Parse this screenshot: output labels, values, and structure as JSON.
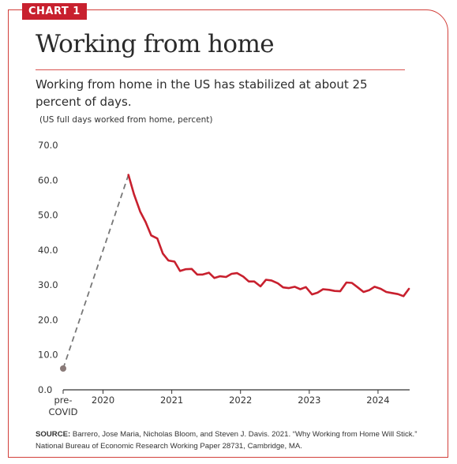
{
  "tag": "CHART 1",
  "title": "Working from home",
  "subtitle": "Working from home in the US has stabilized at about 25 percent of days.",
  "units": "(US full days worked from home, percent)",
  "source_label": "SOURCE:",
  "source_text": "Barrero, Jose Maria, Nicholas Bloom, and Steven J. Davis. 2021. “Why Working from Home Will Stick.” National Bureau of Economic Research Working Paper 28731, Cambridge, MA.",
  "colors": {
    "accent": "#c8202e",
    "line": "#c8202e",
    "dashed": "#777777",
    "marker": "#8a7a78"
  },
  "chart_data": {
    "type": "line",
    "ylim": [
      0,
      70
    ],
    "yticks": [
      "0.0",
      "10.0",
      "20.0",
      "30.0",
      "40.0",
      "50.0",
      "60.0",
      "70.0"
    ],
    "xticks": [
      {
        "label": "pre-\nCOVID",
        "x": 2019.42
      },
      {
        "label": "2020",
        "x": 2020
      },
      {
        "label": "2021",
        "x": 2021
      },
      {
        "label": "2022",
        "x": 2022
      },
      {
        "label": "2023",
        "x": 2023
      },
      {
        "label": "2024",
        "x": 2024
      }
    ],
    "xlim": [
      2019.42,
      2024.46
    ],
    "grid": false,
    "pre_covid": {
      "x": 2019.42,
      "y": 6.1
    },
    "series": [
      {
        "x": [
          2020.37,
          2020.45,
          2020.54,
          2020.62,
          2020.7,
          2020.79,
          2020.87,
          2020.95,
          2021.04,
          2021.12,
          2021.2,
          2021.29,
          2021.37,
          2021.45,
          2021.54,
          2021.62,
          2021.7,
          2021.79,
          2021.87,
          2021.95,
          2022.04,
          2022.12,
          2022.2,
          2022.29,
          2022.37,
          2022.45,
          2022.54,
          2022.62,
          2022.7,
          2022.79,
          2022.87,
          2022.95,
          2023.04,
          2023.12,
          2023.2,
          2023.29,
          2023.37,
          2023.45,
          2023.54,
          2023.62,
          2023.7,
          2023.79,
          2023.87,
          2023.95,
          2024.04,
          2024.12,
          2024.2,
          2024.29,
          2024.37,
          2024.45
        ],
        "values": [
          61.5,
          56.0,
          51.0,
          48.0,
          44.2,
          43.3,
          39.0,
          37.0,
          36.7,
          34.0,
          34.5,
          34.6,
          33.0,
          33.0,
          33.5,
          32.0,
          32.5,
          32.3,
          33.2,
          33.4,
          32.4,
          31.0,
          31.0,
          29.6,
          31.5,
          31.3,
          30.5,
          29.3,
          29.1,
          29.5,
          28.8,
          29.4,
          27.3,
          27.8,
          28.8,
          28.6,
          28.3,
          28.2,
          30.7,
          30.6,
          29.4,
          28.0,
          28.5,
          29.5,
          28.9,
          28.0,
          27.7,
          27.4,
          26.8,
          28.9
        ]
      }
    ]
  }
}
